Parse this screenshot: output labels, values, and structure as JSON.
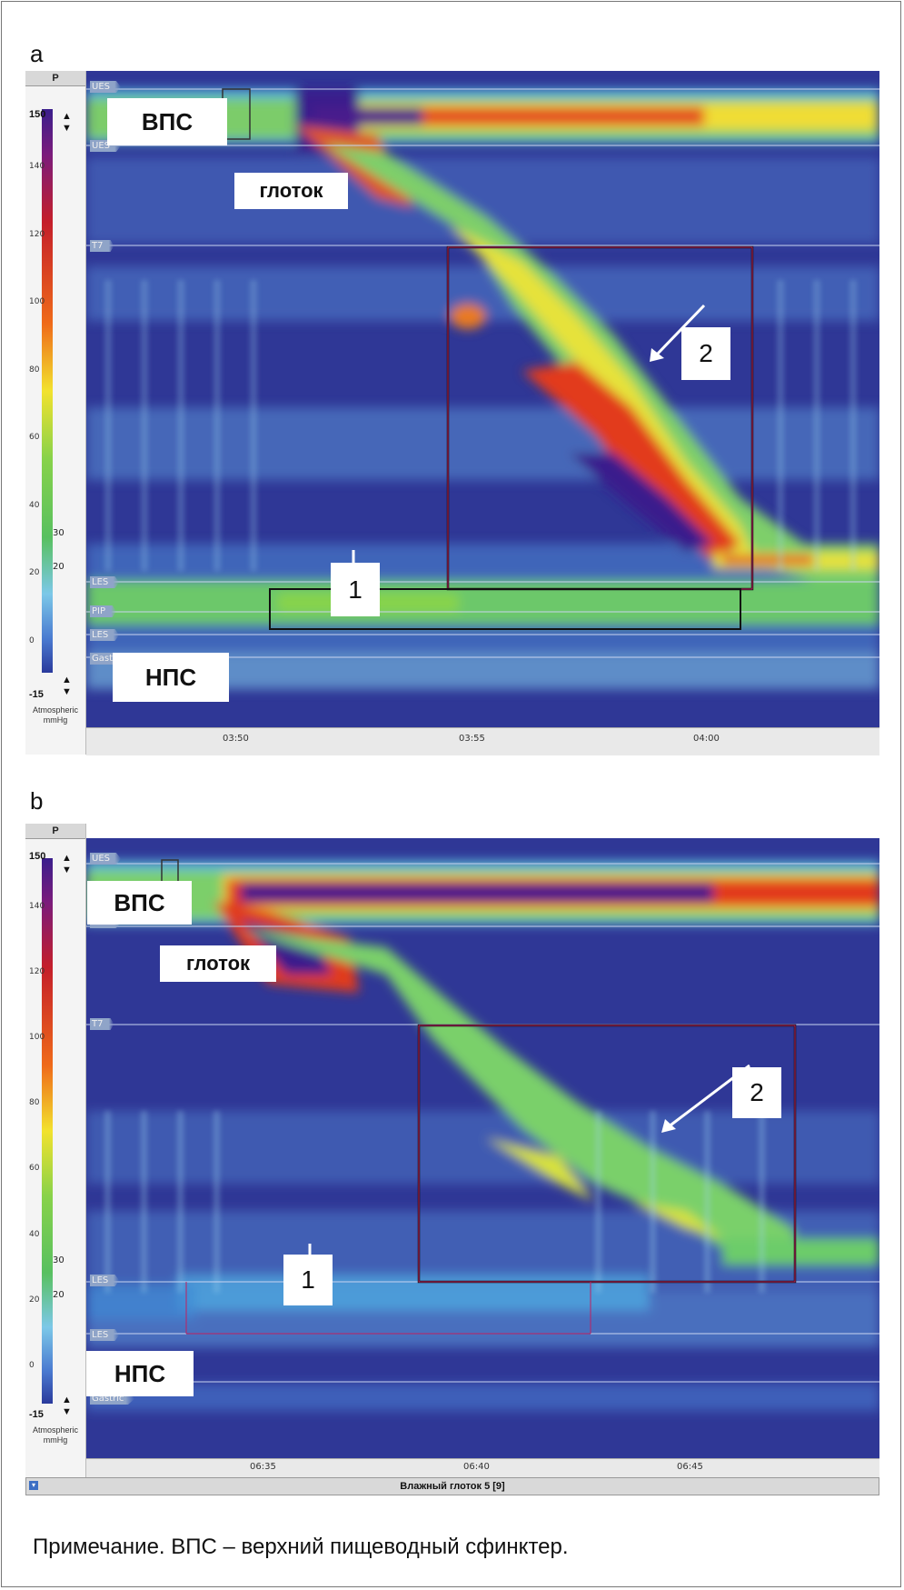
{
  "panels": [
    {
      "letter": "a",
      "channels": [
        "UES",
        "UES",
        "T7",
        "LES",
        "PIP",
        "LES",
        "Gastric"
      ],
      "colorbar": {
        "max": "150",
        "min": "-15",
        "ticks": [
          "140",
          "120",
          "100",
          "80",
          "60",
          "40",
          "20",
          "0"
        ],
        "unit_line1": "Atmospheric",
        "unit_line2": "mmHg",
        "marker_high": "30",
        "marker_low": "20",
        "header": "P"
      },
      "xticks": [
        "03:50",
        "03:55",
        "04:00"
      ],
      "labels": {
        "ues": "ВПС",
        "pharynx": "глоток",
        "les": "НПС"
      },
      "arrows": [
        "1",
        "2"
      ],
      "status": ""
    },
    {
      "letter": "b",
      "channels": [
        "UES",
        "UES",
        "T7",
        "LES",
        "LES",
        "Gastric"
      ],
      "colorbar": {
        "max": "150",
        "min": "-15",
        "ticks": [
          "140",
          "120",
          "100",
          "80",
          "60",
          "40",
          "20",
          "0"
        ],
        "unit_line1": "Atmospheric",
        "unit_line2": "mmHg",
        "marker_high": "30",
        "marker_low": "20",
        "header": "P"
      },
      "xticks": [
        "06:35",
        "06:40",
        "06:45"
      ],
      "labels": {
        "ues": "ВПС",
        "pharynx": "глоток",
        "les": "НПС"
      },
      "arrows": [
        "1",
        "2"
      ],
      "status": "Влажный глоток 5 [9]"
    }
  ],
  "note": "Примечание. ВПС – верхний пищеводный сфинктер.",
  "colors": {
    "background_plot": "#2f3796",
    "low": "#4a9ae0",
    "mid": "#6fcf6f",
    "high_mid": "#e8e23a",
    "high": "#e0301e",
    "peak": "#3a1e8c"
  },
  "chart_data": [
    {
      "type": "heatmap",
      "title": "",
      "panel": "a",
      "xlabel": "",
      "ylabel": "",
      "colorbar_range": [
        -15,
        150
      ],
      "colorbar_unit": "Atmospheric mmHg",
      "x_ticks": [
        "03:50",
        "03:55",
        "04:00"
      ],
      "channels": [
        "UES",
        "UES",
        "T7",
        "LES",
        "PIP",
        "LES",
        "Gastric"
      ],
      "annotations": [
        "ВПС",
        "глоток",
        "НПС",
        "1",
        "2"
      ]
    },
    {
      "type": "heatmap",
      "title": "",
      "panel": "b",
      "xlabel": "",
      "ylabel": "",
      "colorbar_range": [
        -15,
        150
      ],
      "colorbar_unit": "Atmospheric mmHg",
      "x_ticks": [
        "06:35",
        "06:40",
        "06:45"
      ],
      "channels": [
        "UES",
        "UES",
        "T7",
        "LES",
        "LES",
        "Gastric"
      ],
      "annotations": [
        "ВПС",
        "глоток",
        "НПС",
        "1",
        "2"
      ],
      "status": "Влажный глоток 5 [9]"
    }
  ]
}
